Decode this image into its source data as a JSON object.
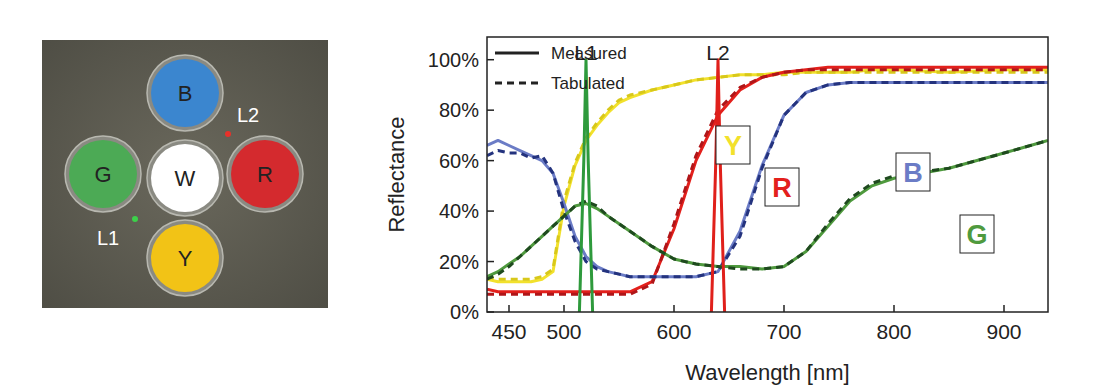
{
  "chart_data": {
    "type": "line",
    "x_label": "Wavelength [nm]",
    "y_label": "Reflectance",
    "xlim": [
      430,
      940
    ],
    "ylim": [
      0,
      109
    ],
    "xticks": [
      450,
      500,
      600,
      700,
      800,
      900
    ],
    "yticks": [
      {
        "value": 0,
        "label": "0%"
      },
      {
        "value": 20,
        "label": "20%"
      },
      {
        "value": 40,
        "label": "40%"
      },
      {
        "value": 60,
        "label": "60%"
      },
      {
        "value": 80,
        "label": "80%"
      },
      {
        "value": 100,
        "label": "100%"
      }
    ],
    "grid": false,
    "legend": "top-left",
    "legend_entries": [
      {
        "label": "Measured",
        "line_style": "solid"
      },
      {
        "label": "Tabulated",
        "line_style": "dashed"
      }
    ],
    "series": [
      {
        "name": "Y",
        "color": "#f2e12c",
        "line_style": "solid",
        "x": [
          430,
          440,
          450,
          460,
          470,
          480,
          490,
          500,
          510,
          520,
          530,
          540,
          550,
          560,
          580,
          600,
          620,
          640,
          660,
          680,
          700,
          720,
          740,
          760,
          780,
          800,
          850,
          900,
          940
        ],
        "values": [
          13,
          12,
          12,
          12,
          12,
          13,
          16,
          42,
          58,
          68,
          74,
          79,
          83,
          85,
          88,
          90,
          92,
          93,
          94,
          94,
          95,
          95,
          95,
          95,
          96,
          96,
          95,
          96,
          96
        ]
      },
      {
        "name": "Y",
        "color": "#d8c81a",
        "line_style": "dashed",
        "x": [
          430,
          440,
          450,
          460,
          470,
          480,
          490,
          500,
          510,
          520,
          530,
          540,
          550,
          560,
          580,
          600,
          620,
          640,
          660,
          680,
          700,
          720,
          740,
          760,
          780,
          800,
          850,
          900,
          940
        ],
        "values": [
          14,
          13,
          13,
          13,
          13,
          14,
          17,
          44,
          59,
          69,
          75,
          80,
          84,
          86,
          88,
          90,
          92,
          93,
          94,
          94,
          94,
          95,
          95,
          95,
          95,
          95,
          95,
          95,
          95
        ]
      },
      {
        "name": "R",
        "color": "#e3201c",
        "line_style": "solid",
        "x": [
          430,
          440,
          450,
          460,
          470,
          480,
          490,
          500,
          510,
          520,
          530,
          540,
          550,
          560,
          580,
          600,
          620,
          640,
          660,
          680,
          700,
          720,
          740,
          760,
          780,
          800,
          850,
          900,
          940
        ],
        "values": [
          9,
          8,
          8,
          8,
          8,
          8,
          8,
          8,
          8,
          8,
          8,
          8,
          8,
          8,
          12,
          33,
          60,
          78,
          88,
          93,
          95,
          96,
          97,
          97,
          97,
          97,
          97,
          97,
          97
        ]
      },
      {
        "name": "R",
        "color": "#b01518",
        "line_style": "dashed",
        "x": [
          430,
          440,
          450,
          460,
          470,
          480,
          490,
          500,
          510,
          520,
          530,
          540,
          550,
          560,
          580,
          600,
          620,
          640,
          660,
          680,
          700,
          720,
          740,
          760,
          780,
          800,
          850,
          900,
          940
        ],
        "values": [
          7,
          7,
          7,
          7,
          7,
          7,
          7,
          7,
          7,
          7,
          7,
          7,
          7,
          7,
          11,
          35,
          62,
          80,
          89,
          93,
          95,
          96,
          96,
          96,
          96,
          96,
          96,
          96,
          96
        ]
      },
      {
        "name": "B",
        "color": "#6b7cc6",
        "line_style": "solid",
        "x": [
          430,
          440,
          450,
          460,
          470,
          480,
          490,
          500,
          510,
          520,
          530,
          540,
          550,
          560,
          580,
          600,
          620,
          640,
          660,
          680,
          700,
          720,
          740,
          760,
          780,
          800,
          850,
          900,
          940
        ],
        "values": [
          66,
          68,
          66,
          64,
          62,
          60,
          55,
          43,
          30,
          22,
          18,
          16,
          15,
          14,
          14,
          14,
          14,
          16,
          32,
          58,
          78,
          87,
          90,
          91,
          91,
          91,
          91,
          91,
          91
        ]
      },
      {
        "name": "B",
        "color": "#24337e",
        "line_style": "dashed",
        "x": [
          430,
          440,
          450,
          460,
          470,
          480,
          490,
          500,
          510,
          520,
          530,
          540,
          550,
          560,
          580,
          600,
          620,
          640,
          660,
          680,
          700,
          720,
          740,
          760,
          780,
          800,
          850,
          900,
          940
        ],
        "values": [
          62,
          64,
          63,
          63,
          61,
          62,
          55,
          40,
          28,
          20,
          17,
          16,
          15,
          14,
          14,
          14,
          14,
          16,
          30,
          57,
          78,
          87,
          90,
          91,
          91,
          91,
          91,
          91,
          91
        ]
      },
      {
        "name": "G",
        "color": "#4f9a3e",
        "line_style": "solid",
        "x": [
          430,
          440,
          450,
          460,
          470,
          480,
          490,
          500,
          510,
          520,
          530,
          540,
          550,
          560,
          580,
          600,
          620,
          640,
          660,
          680,
          700,
          720,
          740,
          760,
          780,
          800,
          850,
          900,
          940
        ],
        "values": [
          14,
          16,
          19,
          22,
          26,
          30,
          34,
          38,
          42,
          43,
          41,
          38,
          35,
          32,
          26,
          21,
          19,
          18,
          18,
          17,
          18,
          24,
          34,
          44,
          50,
          53,
          57,
          63,
          68
        ]
      },
      {
        "name": "G",
        "color": "#1f4a1f",
        "line_style": "dashed",
        "x": [
          430,
          440,
          450,
          460,
          470,
          480,
          490,
          500,
          510,
          520,
          530,
          540,
          550,
          560,
          580,
          600,
          620,
          640,
          660,
          680,
          700,
          720,
          740,
          760,
          780,
          800,
          850,
          900,
          940
        ],
        "values": [
          13,
          15,
          18,
          22,
          26,
          30,
          34,
          38,
          42,
          44,
          42,
          38,
          35,
          32,
          26,
          21,
          19,
          18,
          17,
          17,
          18,
          24,
          35,
          45,
          51,
          54,
          57,
          63,
          68
        ]
      },
      {
        "name": "L1",
        "color": "#2e9a3c",
        "line_style": "solid",
        "x": [
          514,
          518,
          520,
          522,
          526
        ],
        "values": [
          0,
          60,
          100,
          60,
          0
        ]
      },
      {
        "name": "L2",
        "color": "#e0201b",
        "line_style": "solid",
        "x": [
          634,
          638,
          640,
          642,
          646
        ],
        "values": [
          0,
          60,
          100,
          60,
          0
        ]
      }
    ]
  },
  "photo": {
    "disks": [
      {
        "label": "B",
        "color": "#3b86cf"
      },
      {
        "label": "G",
        "color": "#4caa55"
      },
      {
        "label": "W",
        "color": "#ffffff"
      },
      {
        "label": "R",
        "color": "#d42a2e"
      },
      {
        "label": "Y",
        "color": "#f2c316"
      }
    ],
    "lasers": [
      {
        "label": "L1",
        "color": "#3cd04a"
      },
      {
        "label": "L2",
        "color": "#e8302a"
      }
    ]
  }
}
